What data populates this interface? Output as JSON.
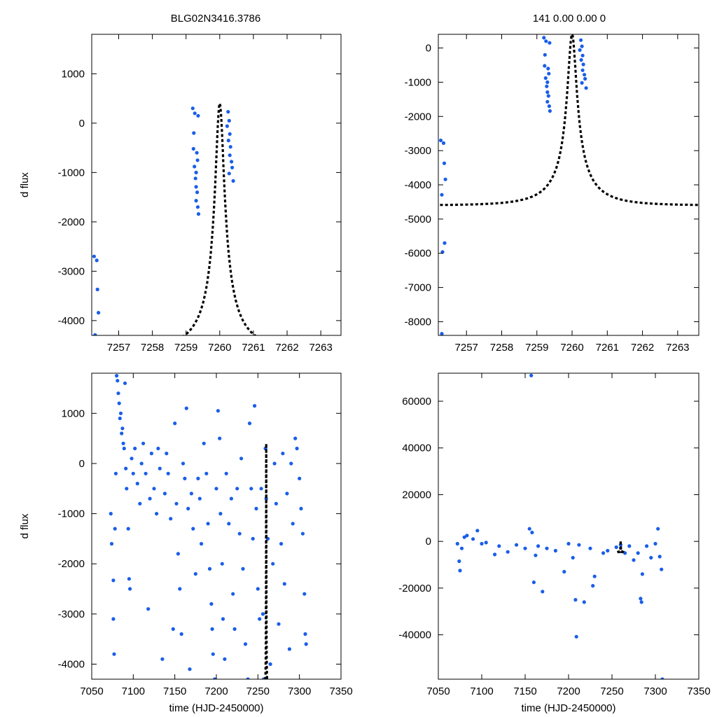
{
  "figure": {
    "left_title": "BLG02N3416.3786",
    "right_title": "141   0.00   0.00   0"
  },
  "colors": {
    "points": "#1a5ee8",
    "model": "#000000",
    "frame": "#000000"
  },
  "chart_data": [
    {
      "id": "zoom-left",
      "type": "scatter",
      "title": "BLG02N3416.3786",
      "xlabel": "",
      "ylabel": "d flux",
      "xlim": [
        7256.2,
        7263.6
      ],
      "ylim": [
        -4300,
        1800
      ],
      "xticks": [
        7257,
        7258,
        7259,
        7260,
        7261,
        7262,
        7263
      ],
      "yticks": [
        -4000,
        -3000,
        -2000,
        -1000,
        0,
        1000
      ],
      "model": {
        "t0": 7260.0,
        "peak": 400,
        "base": -4600,
        "u0": 0.1,
        "tE": 1.33,
        "x_range": [
          7256.25,
          7263.6
        ]
      },
      "series": [
        {
          "name": "data",
          "points": [
            [
              7256.27,
              -2700
            ],
            [
              7256.35,
              -2780
            ],
            [
              7256.37,
              -3370
            ],
            [
              7256.4,
              -3840
            ],
            [
              7256.3,
              -4290
            ],
            [
              7259.2,
              300
            ],
            [
              7259.26,
              200
            ],
            [
              7259.22,
              -520
            ],
            [
              7259.25,
              -880
            ],
            [
              7259.3,
              -1000
            ],
            [
              7259.28,
              -1120
            ],
            [
              7259.3,
              -1290
            ],
            [
              7259.33,
              -1400
            ],
            [
              7259.3,
              -1570
            ],
            [
              7259.35,
              -1700
            ],
            [
              7259.37,
              -1840
            ],
            [
              7259.36,
              150
            ],
            [
              7259.23,
              -200
            ],
            [
              7259.34,
              -750
            ],
            [
              7259.32,
              -600
            ],
            [
              7260.25,
              230
            ],
            [
              7260.28,
              50
            ],
            [
              7260.3,
              -220
            ],
            [
              7260.26,
              -350
            ],
            [
              7260.32,
              -480
            ],
            [
              7260.3,
              -650
            ],
            [
              7260.35,
              -780
            ],
            [
              7260.37,
              -900
            ],
            [
              7260.4,
              -1170
            ],
            [
              7260.28,
              -1020
            ],
            [
              7260.22,
              -60
            ]
          ]
        }
      ]
    },
    {
      "id": "zoom-right",
      "type": "scatter",
      "title": "141   0.00   0.00   0",
      "xlabel": "",
      "ylabel": "",
      "xlim": [
        7256.2,
        7263.6
      ],
      "ylim": [
        -8400,
        400
      ],
      "xticks": [
        7257,
        7258,
        7259,
        7260,
        7261,
        7262,
        7263
      ],
      "yticks": [
        -8000,
        -7000,
        -6000,
        -5000,
        -4000,
        -3000,
        -2000,
        -1000,
        0
      ],
      "model": {
        "t0": 7260.0,
        "peak": 400,
        "base": -4600,
        "u0": 0.1,
        "tE": 1.33,
        "x_range": [
          7256.25,
          7263.6
        ]
      },
      "series": [
        {
          "name": "data",
          "points": [
            [
              7256.27,
              -2700
            ],
            [
              7256.35,
              -2780
            ],
            [
              7256.37,
              -3370
            ],
            [
              7256.4,
              -3840
            ],
            [
              7256.3,
              -4290
            ],
            [
              7256.38,
              -5700
            ],
            [
              7256.32,
              -5960
            ],
            [
              7256.3,
              -8350
            ],
            [
              7259.2,
              300
            ],
            [
              7259.26,
              200
            ],
            [
              7259.22,
              -520
            ],
            [
              7259.25,
              -880
            ],
            [
              7259.3,
              -1000
            ],
            [
              7259.28,
              -1120
            ],
            [
              7259.3,
              -1290
            ],
            [
              7259.33,
              -1400
            ],
            [
              7259.3,
              -1570
            ],
            [
              7259.35,
              -1700
            ],
            [
              7259.37,
              -1840
            ],
            [
              7259.36,
              150
            ],
            [
              7259.23,
              -200
            ],
            [
              7259.34,
              -750
            ],
            [
              7259.32,
              -600
            ],
            [
              7260.25,
              230
            ],
            [
              7260.28,
              50
            ],
            [
              7260.3,
              -220
            ],
            [
              7260.26,
              -350
            ],
            [
              7260.32,
              -480
            ],
            [
              7260.3,
              -650
            ],
            [
              7260.35,
              -780
            ],
            [
              7260.37,
              -900
            ],
            [
              7260.4,
              -1170
            ],
            [
              7260.28,
              -1020
            ],
            [
              7260.22,
              -60
            ]
          ]
        }
      ]
    },
    {
      "id": "full-left",
      "type": "scatter",
      "title": "",
      "xlabel": "time (HJD-2450000)",
      "ylabel": "d flux",
      "xlim": [
        7050,
        7350
      ],
      "ylim": [
        -4300,
        1800
      ],
      "xticks": [
        7050,
        7100,
        7150,
        7200,
        7250,
        7300,
        7350
      ],
      "yticks": [
        -4000,
        -3000,
        -2000,
        -1000,
        0,
        1000
      ],
      "model": {
        "t0": 7260.0,
        "peak": 400,
        "base": -4600,
        "u0": 0.1,
        "tE": 1.33,
        "x_range": [
          7256.25,
          7263.6
        ]
      },
      "series": [
        {
          "name": "data",
          "points": [
            [
              7073,
              -1000
            ],
            [
              7074,
              -1600
            ],
            [
              7076,
              -2330
            ],
            [
              7076,
              -3100
            ],
            [
              7077,
              -3800
            ],
            [
              7078,
              -1300
            ],
            [
              7079,
              -200
            ],
            [
              7080,
              1750
            ],
            [
              7081,
              1650
            ],
            [
              7082,
              1400
            ],
            [
              7083,
              1200
            ],
            [
              7084,
              900
            ],
            [
              7086,
              600
            ],
            [
              7088,
              400
            ],
            [
              7090,
              1600
            ],
            [
              7085,
              1000
            ],
            [
              7087,
              700
            ],
            [
              7089,
              300
            ],
            [
              7091,
              -100
            ],
            [
              7092,
              -500
            ],
            [
              7094,
              -1300
            ],
            [
              7095,
              -2300
            ],
            [
              7096,
              -2500
            ],
            [
              7098,
              100
            ],
            [
              7100,
              -200
            ],
            [
              7102,
              300
            ],
            [
              7105,
              -400
            ],
            [
              7108,
              -800
            ],
            [
              7110,
              0
            ],
            [
              7112,
              400
            ],
            [
              7115,
              -200
            ],
            [
              7118,
              -2900
            ],
            [
              7120,
              -700
            ],
            [
              7122,
              200
            ],
            [
              7125,
              -500
            ],
            [
              7128,
              -1000
            ],
            [
              7130,
              300
            ],
            [
              7132,
              -100
            ],
            [
              7135,
              -3900
            ],
            [
              7138,
              -600
            ],
            [
              7140,
              200
            ],
            [
              7142,
              -200
            ],
            [
              7145,
              -1100
            ],
            [
              7148,
              -3300
            ],
            [
              7150,
              800
            ],
            [
              7152,
              -800
            ],
            [
              7154,
              -1800
            ],
            [
              7156,
              -2500
            ],
            [
              7158,
              -3400
            ],
            [
              7160,
              0
            ],
            [
              7162,
              -300
            ],
            [
              7164,
              1100
            ],
            [
              7166,
              -900
            ],
            [
              7168,
              -4100
            ],
            [
              7170,
              -600
            ],
            [
              7172,
              -1300
            ],
            [
              7175,
              -2200
            ],
            [
              7178,
              -300
            ],
            [
              7180,
              -700
            ],
            [
              7182,
              -1600
            ],
            [
              7185,
              400
            ],
            [
              7188,
              -200
            ],
            [
              7190,
              -1200
            ],
            [
              7192,
              -2100
            ],
            [
              7194,
              -2800
            ],
            [
              7195,
              -3300
            ],
            [
              7196,
              -3800
            ],
            [
              7198,
              -4300
            ],
            [
              7200,
              -500
            ],
            [
              7202,
              1050
            ],
            [
              7204,
              500
            ],
            [
              7205,
              -1000
            ],
            [
              7207,
              -2000
            ],
            [
              7208,
              -3100
            ],
            [
              7210,
              -3900
            ],
            [
              7212,
              -200
            ],
            [
              7215,
              -1200
            ],
            [
              7218,
              -700
            ],
            [
              7220,
              -2600
            ],
            [
              7222,
              -3300
            ],
            [
              7225,
              -500
            ],
            [
              7228,
              -1400
            ],
            [
              7230,
              100
            ],
            [
              7232,
              -2100
            ],
            [
              7235,
              -3600
            ],
            [
              7238,
              -4300
            ],
            [
              7240,
              800
            ],
            [
              7242,
              -500
            ],
            [
              7244,
              -1500
            ],
            [
              7246,
              1150
            ],
            [
              7248,
              -900
            ],
            [
              7250,
              -2500
            ],
            [
              7252,
              -3100
            ],
            [
              7254,
              -500
            ],
            [
              7256,
              -3000
            ],
            [
              7257,
              -4300
            ],
            [
              7259,
              300
            ],
            [
              7260,
              -700
            ],
            [
              7262,
              -1500
            ],
            [
              7265,
              -4000
            ],
            [
              7268,
              -2000
            ],
            [
              7270,
              0
            ],
            [
              7272,
              -800
            ],
            [
              7275,
              -3200
            ],
            [
              7278,
              -1600
            ],
            [
              7280,
              200
            ],
            [
              7282,
              -2400
            ],
            [
              7285,
              -600
            ],
            [
              7288,
              -3700
            ],
            [
              7290,
              0
            ],
            [
              7292,
              -1200
            ],
            [
              7295,
              500
            ],
            [
              7297,
              300
            ],
            [
              7300,
              -300
            ],
            [
              7302,
              -900
            ],
            [
              7304,
              -1400
            ],
            [
              7306,
              -2600
            ],
            [
              7307,
              -3400
            ],
            [
              7308,
              -3600
            ]
          ]
        }
      ]
    },
    {
      "id": "full-right",
      "type": "scatter",
      "title": "",
      "xlabel": "time (HJD-2450000)",
      "ylabel": "",
      "xlim": [
        7050,
        7350
      ],
      "ylim": [
        -59000,
        72000
      ],
      "xticks": [
        7050,
        7100,
        7150,
        7200,
        7250,
        7300,
        7350
      ],
      "yticks": [
        -40000,
        -20000,
        0,
        20000,
        40000,
        60000
      ],
      "model": {
        "t0": 7260.0,
        "peak": 400,
        "base": -4600,
        "u0": 0.1,
        "tE": 1.33,
        "x_range": [
          7256.25,
          7263.6
        ]
      },
      "series": [
        {
          "name": "data",
          "points": [
            [
              7072,
              -1000
            ],
            [
              7074,
              -8500
            ],
            [
              7075,
              -12500
            ],
            [
              7077,
              -3000
            ],
            [
              7080,
              1800
            ],
            [
              7083,
              2500
            ],
            [
              7090,
              1000
            ],
            [
              7095,
              4600
            ],
            [
              7100,
              -1000
            ],
            [
              7105,
              -500
            ],
            [
              7115,
              -5600
            ],
            [
              7120,
              -2000
            ],
            [
              7130,
              -4500
            ],
            [
              7140,
              -1500
            ],
            [
              7150,
              -3000
            ],
            [
              7155,
              5400
            ],
            [
              7158,
              3800
            ],
            [
              7160,
              -17500
            ],
            [
              7162,
              -6000
            ],
            [
              7165,
              -2000
            ],
            [
              7170,
              -21500
            ],
            [
              7175,
              -3000
            ],
            [
              7185,
              -4000
            ],
            [
              7195,
              -13000
            ],
            [
              7200,
              -1000
            ],
            [
              7205,
              -7000
            ],
            [
              7208,
              -25000
            ],
            [
              7209,
              -40800
            ],
            [
              7212,
              -1500
            ],
            [
              7218,
              -26000
            ],
            [
              7225,
              -3000
            ],
            [
              7228,
              -19000
            ],
            [
              7230,
              -15000
            ],
            [
              7240,
              -5000
            ],
            [
              7245,
              -4000
            ],
            [
              7255,
              -2500
            ],
            [
              7260,
              -1500
            ],
            [
              7265,
              -5000
            ],
            [
              7270,
              -2000
            ],
            [
              7275,
              -8000
            ],
            [
              7280,
              -5000
            ],
            [
              7283,
              -24500
            ],
            [
              7284,
              -26000
            ],
            [
              7285,
              -14000
            ],
            [
              7290,
              -2000
            ],
            [
              7295,
              -7000
            ],
            [
              7300,
              -1000
            ],
            [
              7303,
              5400
            ],
            [
              7305,
              -6500
            ],
            [
              7307,
              -12000
            ],
            [
              7308,
              -59000
            ],
            [
              7157,
              71000
            ]
          ]
        }
      ]
    }
  ]
}
